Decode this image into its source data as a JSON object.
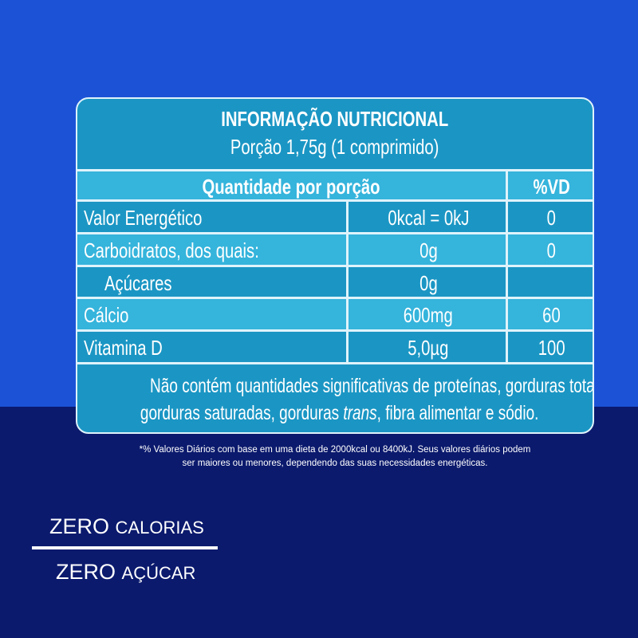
{
  "label": {
    "title": "INFORMAÇÃO NUTRICIONAL",
    "portion": "Porção 1,75g (1 comprimido)",
    "header": {
      "quantity": "Quantidade por porção",
      "dv": "%VD"
    },
    "rows": [
      {
        "name": "Valor Energético",
        "amount": "0kcal = 0kJ",
        "dv": "0"
      },
      {
        "name": "Carboidratos, dos quais:",
        "amount": "0g",
        "dv": "0"
      },
      {
        "name": "Açúcares",
        "amount": "0g",
        "dv": ""
      },
      {
        "name": "Cálcio",
        "amount": "600mg",
        "dv": "60"
      },
      {
        "name": "Vitamina D",
        "amount": "5,0µg",
        "dv": "100"
      }
    ],
    "footer_line1": "Não contém quantidades significativas de proteínas, gorduras totais,",
    "footer_line2a": "gorduras saturadas, gorduras ",
    "footer_trans": "trans",
    "footer_line2b": ", fibra alimentar e sódio."
  },
  "footnote": {
    "line1": "*% Valores Diários com base em uma dieta de 2000kcal ou 8400kJ. Seus valores diários podem",
    "line2": "ser maiores ou menores, dependendo das suas necessidades energéticas."
  },
  "claims": [
    {
      "big": "ZERO",
      "small": "CALORIAS"
    },
    {
      "big": "ZERO",
      "small": "AÇÚCAR"
    }
  ],
  "colors": {
    "top_background": "#1c53d6",
    "bottom_background": "#0b1a6d",
    "row_dark": "#1b96c4",
    "row_light": "#35b4dc"
  }
}
